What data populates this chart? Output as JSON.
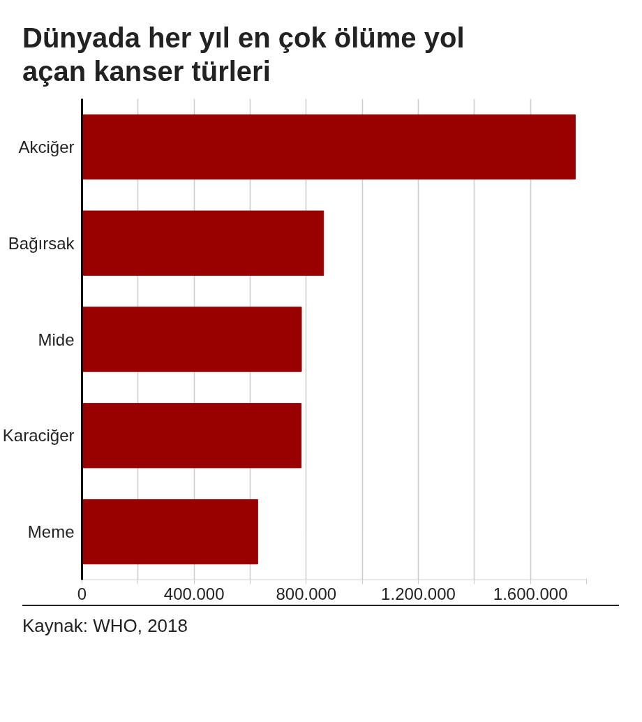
{
  "chart_data": {
    "type": "bar",
    "orientation": "horizontal",
    "title": "Dünyada her yıl en çok ölüme yol açan kanser türleri",
    "categories": [
      "Akciğer",
      "Bağırsak",
      "Mide",
      "Karaciğer",
      "Meme"
    ],
    "values": [
      1760000,
      862000,
      783000,
      782000,
      627000
    ],
    "color": "#990000",
    "xlim": [
      0,
      1800000
    ],
    "xticks": [
      0,
      {
        "value": 200000,
        "label": null
      },
      {
        "value": 400000,
        "label": "400.000"
      },
      {
        "value": 600000,
        "label": null
      },
      {
        "value": 800000,
        "label": "800.000"
      },
      {
        "value": 1000000,
        "label": null
      },
      {
        "value": 1200000,
        "label": "1.200.000"
      },
      {
        "value": 1400000,
        "label": null
      },
      {
        "value": 1600000,
        "label": "1.600.000"
      },
      {
        "value": 1800000,
        "label": null
      }
    ],
    "grid": "x",
    "annotations": [
      "Kaynak: WHO, 2018"
    ]
  }
}
